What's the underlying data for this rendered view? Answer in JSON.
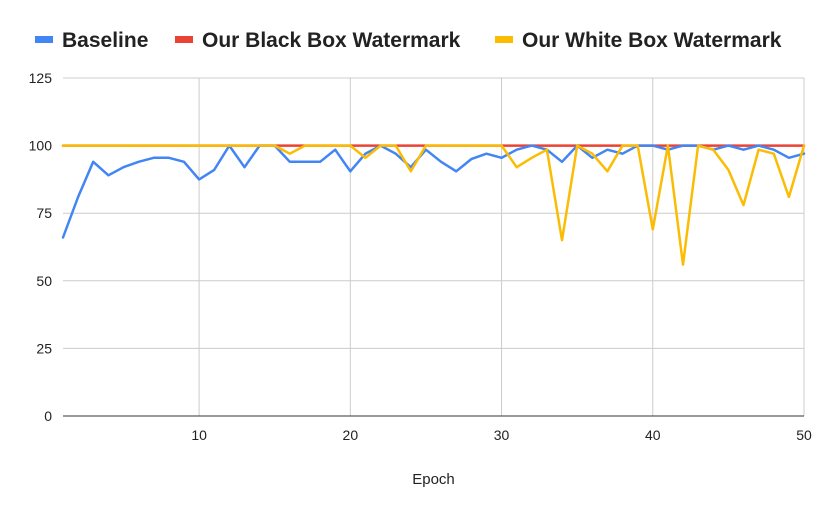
{
  "chart_data": {
    "type": "line",
    "title": "",
    "xlabel": "Epoch",
    "ylabel": "",
    "xlim": [
      1,
      50
    ],
    "ylim": [
      0,
      125
    ],
    "x_ticks": [
      10,
      20,
      30,
      40,
      50
    ],
    "y_ticks": [
      0,
      25,
      50,
      75,
      100,
      125
    ],
    "grid": true,
    "legend_position": "top",
    "x": [
      1,
      2,
      3,
      4,
      5,
      6,
      7,
      8,
      9,
      10,
      11,
      12,
      13,
      14,
      15,
      16,
      17,
      18,
      19,
      20,
      21,
      22,
      23,
      24,
      25,
      26,
      27,
      28,
      29,
      30,
      31,
      32,
      33,
      34,
      35,
      36,
      37,
      38,
      39,
      40,
      41,
      42,
      43,
      44,
      45,
      46,
      47,
      48,
      49,
      50
    ],
    "series": [
      {
        "name": "Baseline",
        "color": "#4285F4",
        "values": [
          66,
          81,
          94,
          89,
          92,
          94,
          95.5,
          95.5,
          94,
          87.5,
          91,
          100,
          92,
          100,
          100,
          94,
          94,
          94,
          98.5,
          90.5,
          97,
          100,
          97,
          92,
          98.5,
          94,
          90.5,
          95,
          97,
          95.5,
          98.5,
          100,
          98.5,
          94,
          100,
          95.5,
          98.5,
          97,
          100,
          100,
          98.5,
          100,
          100,
          98.5,
          100,
          98.5,
          100,
          98.5,
          95.5,
          97
        ]
      },
      {
        "name": "Our Black Box Watermark",
        "color": "#EA4335",
        "values": [
          100,
          100,
          100,
          100,
          100,
          100,
          100,
          100,
          100,
          100,
          100,
          100,
          100,
          100,
          100,
          100,
          100,
          100,
          100,
          100,
          100,
          100,
          100,
          100,
          100,
          100,
          100,
          100,
          100,
          100,
          100,
          100,
          100,
          100,
          100,
          100,
          100,
          100,
          100,
          100,
          100,
          100,
          100,
          100,
          100,
          100,
          100,
          100,
          100,
          100
        ]
      },
      {
        "name": "Our White Box Watermark",
        "color": "#FBBC04",
        "values": [
          100,
          100,
          100,
          100,
          100,
          100,
          100,
          100,
          100,
          100,
          100,
          100,
          100,
          100,
          100,
          97,
          100,
          100,
          100,
          100,
          95.5,
          100,
          100,
          90.5,
          100,
          100,
          100,
          100,
          100,
          100,
          92,
          95.5,
          98.5,
          65,
          100,
          97,
          90.5,
          100,
          100,
          69,
          100,
          56,
          100,
          98.5,
          91,
          78,
          98.5,
          97,
          81,
          100
        ]
      }
    ]
  }
}
